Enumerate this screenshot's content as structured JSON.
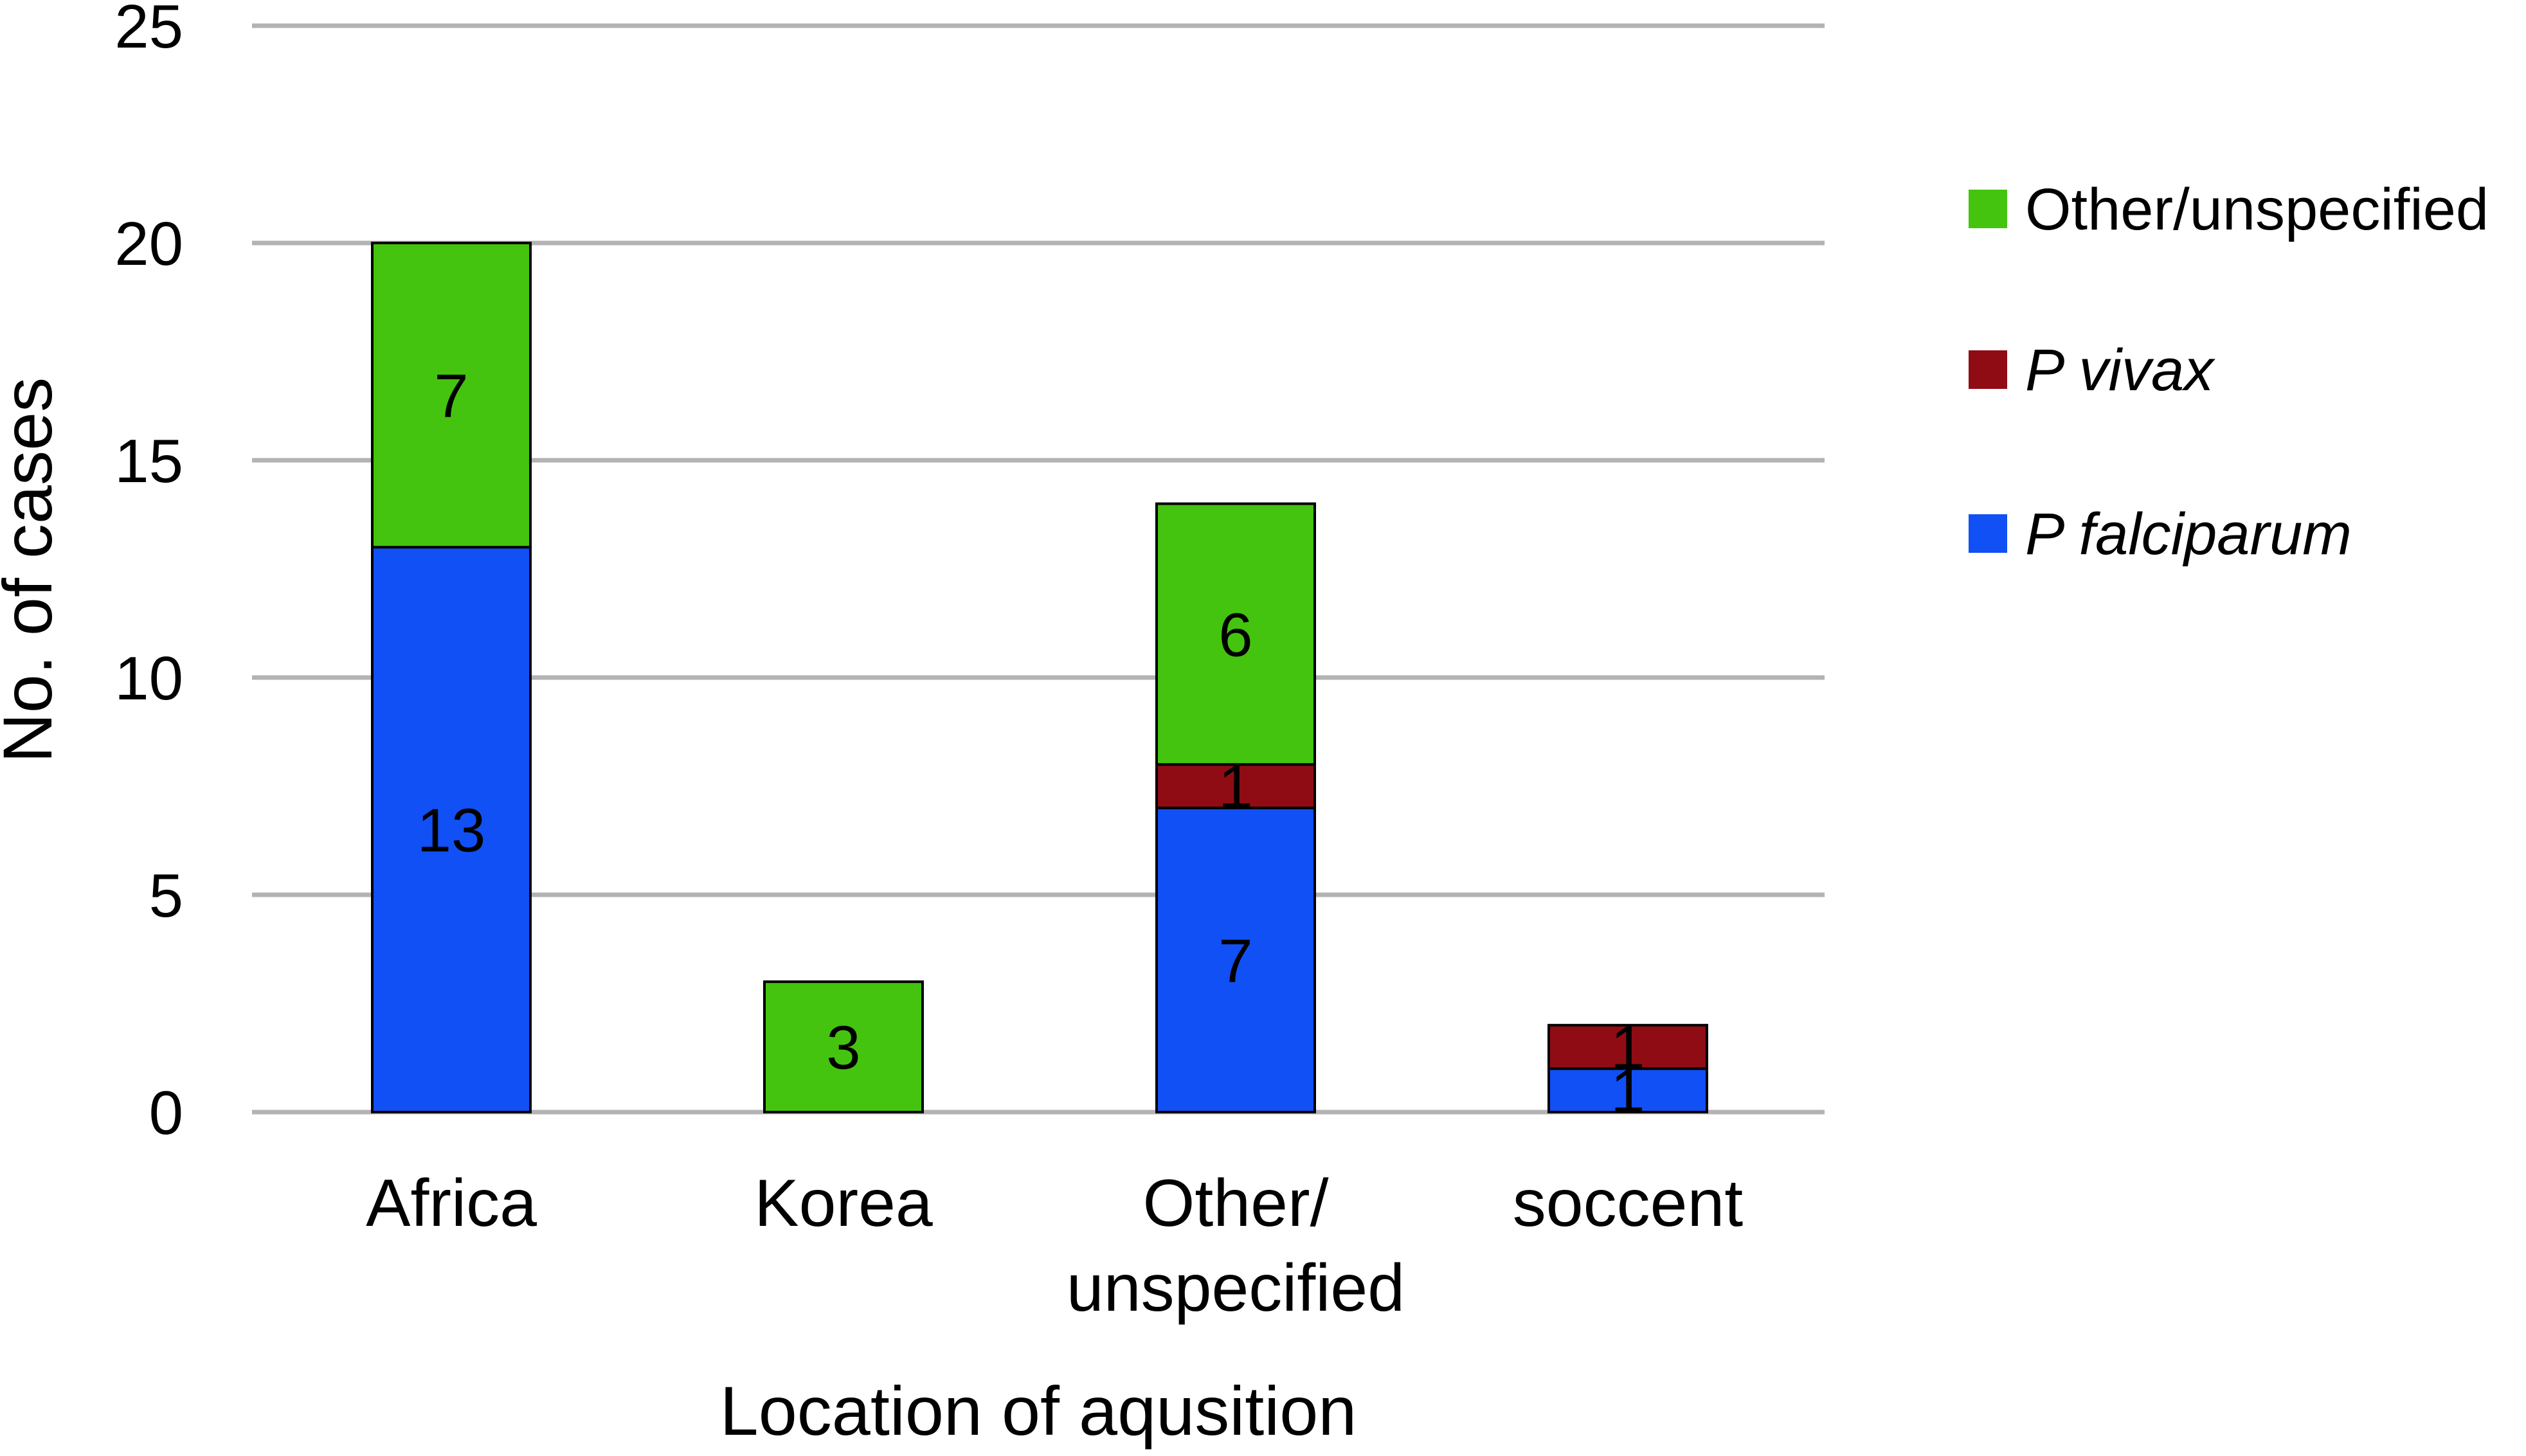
{
  "chart_data": {
    "type": "bar",
    "stacked": true,
    "title": "",
    "xlabel": "Location of aqusition",
    "ylabel": "No. of cases",
    "ylim": [
      0,
      25
    ],
    "yticks": [
      "0",
      "5",
      "10",
      "15",
      "20",
      "25"
    ],
    "grid": true,
    "legend_position": "right",
    "categories": [
      [
        "Africa"
      ],
      [
        "Korea"
      ],
      [
        "Other/",
        "unspecified"
      ],
      [
        "soccent"
      ]
    ],
    "series": [
      {
        "name": "P falciparum",
        "italic": true,
        "color": "#1150f5",
        "values": [
          13,
          0,
          7,
          1
        ]
      },
      {
        "name": "P vivax",
        "italic": true,
        "color": "#900c14",
        "values": [
          0,
          0,
          1,
          1
        ]
      },
      {
        "name": "Other/unspecified",
        "italic": false,
        "color": "#44c40e",
        "values": [
          7,
          3,
          6,
          0
        ]
      }
    ]
  }
}
